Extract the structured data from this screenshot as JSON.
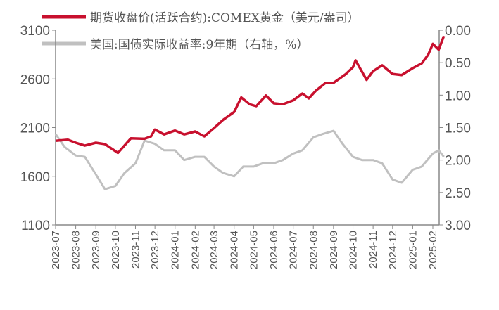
{
  "chart_data": {
    "type": "line",
    "title": "",
    "x_tick_labels": [
      "2023-07",
      "2023-08",
      "2023-09",
      "2023-10",
      "2023-11",
      "2023-12",
      "2024-01",
      "2024-02",
      "2024-03",
      "2024-04",
      "2024-05",
      "2024-06",
      "2024-07",
      "2024-08",
      "2024-09",
      "2024-10",
      "2024-11",
      "2024-12",
      "2025-01",
      "2025-02"
    ],
    "left_axis": {
      "range": [
        1100,
        3100
      ],
      "ticks": [
        "1100",
        "1600",
        "2100",
        "2600",
        "3100"
      ]
    },
    "right_axis": {
      "range": [
        0.0,
        3.0
      ],
      "inverted": true,
      "ticks": [
        "0.00",
        "0.50",
        "1.00",
        "1.50",
        "2.00",
        "2.50",
        "3.00"
      ]
    },
    "grid": false,
    "legend_position": "top",
    "series": [
      {
        "name": "期货收盘价(活跃合约):COMEX黄金（美元/盎司）",
        "axis": "left",
        "color": "#c8102e",
        "points": [
          [
            "2023-07-01",
            1965
          ],
          [
            "2023-07-20",
            1975
          ],
          [
            "2023-08-01",
            1945
          ],
          [
            "2023-08-15",
            1915
          ],
          [
            "2023-09-01",
            1945
          ],
          [
            "2023-09-15",
            1930
          ],
          [
            "2023-10-05",
            1840
          ],
          [
            "2023-10-25",
            1990
          ],
          [
            "2023-11-15",
            1985
          ],
          [
            "2023-11-25",
            2010
          ],
          [
            "2023-12-01",
            2080
          ],
          [
            "2023-12-15",
            2030
          ],
          [
            "2024-01-01",
            2070
          ],
          [
            "2024-01-15",
            2030
          ],
          [
            "2024-02-01",
            2060
          ],
          [
            "2024-02-15",
            2010
          ],
          [
            "2024-03-01",
            2095
          ],
          [
            "2024-03-15",
            2180
          ],
          [
            "2024-04-01",
            2260
          ],
          [
            "2024-04-12",
            2410
          ],
          [
            "2024-04-25",
            2340
          ],
          [
            "2024-05-05",
            2320
          ],
          [
            "2024-05-20",
            2430
          ],
          [
            "2024-06-01",
            2350
          ],
          [
            "2024-06-15",
            2340
          ],
          [
            "2024-07-01",
            2380
          ],
          [
            "2024-07-15",
            2450
          ],
          [
            "2024-07-25",
            2400
          ],
          [
            "2024-08-05",
            2480
          ],
          [
            "2024-08-20",
            2560
          ],
          [
            "2024-09-01",
            2560
          ],
          [
            "2024-09-20",
            2650
          ],
          [
            "2024-10-01",
            2720
          ],
          [
            "2024-10-05",
            2790
          ],
          [
            "2024-10-22",
            2590
          ],
          [
            "2024-11-01",
            2680
          ],
          [
            "2024-11-15",
            2740
          ],
          [
            "2024-12-01",
            2650
          ],
          [
            "2024-12-15",
            2640
          ],
          [
            "2025-01-01",
            2710
          ],
          [
            "2025-01-15",
            2760
          ],
          [
            "2025-01-25",
            2850
          ],
          [
            "2025-02-01",
            2960
          ],
          [
            "2025-02-10",
            2900
          ],
          [
            "2025-02-18",
            3040
          ]
        ]
      },
      {
        "name": "美国:国债实际收益率:9年期（右轴，%）",
        "axis": "right",
        "color": "#c0c0c0",
        "points": [
          [
            "2023-07-01",
            1.6
          ],
          [
            "2023-07-15",
            1.8
          ],
          [
            "2023-08-01",
            1.93
          ],
          [
            "2023-08-15",
            1.95
          ],
          [
            "2023-09-01",
            2.22
          ],
          [
            "2023-09-15",
            2.45
          ],
          [
            "2023-10-01",
            2.4
          ],
          [
            "2023-10-15",
            2.2
          ],
          [
            "2023-11-01",
            2.05
          ],
          [
            "2023-11-15",
            1.7
          ],
          [
            "2023-12-01",
            1.75
          ],
          [
            "2023-12-15",
            1.85
          ],
          [
            "2024-01-01",
            1.85
          ],
          [
            "2024-01-15",
            2.0
          ],
          [
            "2024-02-01",
            1.95
          ],
          [
            "2024-02-15",
            1.95
          ],
          [
            "2024-03-01",
            2.1
          ],
          [
            "2024-03-15",
            2.2
          ],
          [
            "2024-04-01",
            2.25
          ],
          [
            "2024-04-15",
            2.1
          ],
          [
            "2024-05-01",
            2.1
          ],
          [
            "2024-05-15",
            2.05
          ],
          [
            "2024-06-01",
            2.05
          ],
          [
            "2024-06-15",
            2.0
          ],
          [
            "2024-07-01",
            1.9
          ],
          [
            "2024-07-15",
            1.85
          ],
          [
            "2024-08-01",
            1.65
          ],
          [
            "2024-08-15",
            1.6
          ],
          [
            "2024-09-01",
            1.55
          ],
          [
            "2024-09-15",
            1.75
          ],
          [
            "2024-10-01",
            1.95
          ],
          [
            "2024-10-15",
            2.0
          ],
          [
            "2024-11-01",
            2.0
          ],
          [
            "2024-11-15",
            2.05
          ],
          [
            "2024-12-01",
            2.3
          ],
          [
            "2024-12-15",
            2.35
          ],
          [
            "2025-01-01",
            2.15
          ],
          [
            "2025-01-15",
            2.1
          ],
          [
            "2025-02-01",
            1.9
          ],
          [
            "2025-02-10",
            1.85
          ],
          [
            "2025-02-18",
            1.95
          ]
        ]
      }
    ]
  }
}
